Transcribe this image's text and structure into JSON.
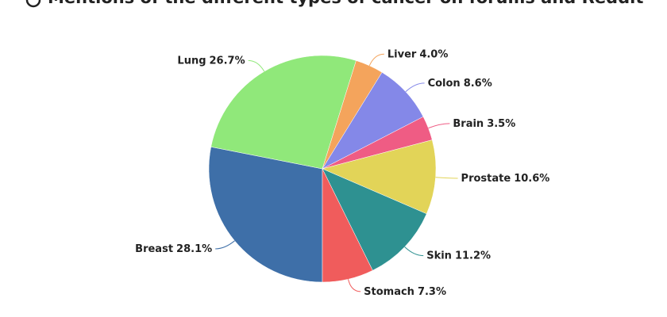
{
  "chart_data": {
    "type": "pie",
    "title": "Mentions of the different types of cancer on forums and Reddit",
    "categories": [
      "Breast",
      "Lung",
      "Liver",
      "Colon",
      "Brain",
      "Prostate",
      "Skin",
      "Stomach"
    ],
    "values": [
      28.1,
      26.7,
      4.0,
      8.6,
      3.5,
      10.6,
      11.2,
      7.3
    ],
    "value_labels": [
      "28.1%",
      "26.7%",
      "4.0%",
      "8.6%",
      "3.5%",
      "10.6%",
      "11.2%",
      "7.3%"
    ],
    "colors": [
      "#3e6fa8",
      "#90e87a",
      "#f4a45c",
      "#8488e8",
      "#ef5c84",
      "#e2d458",
      "#2e9191",
      "#f05c5c"
    ]
  }
}
